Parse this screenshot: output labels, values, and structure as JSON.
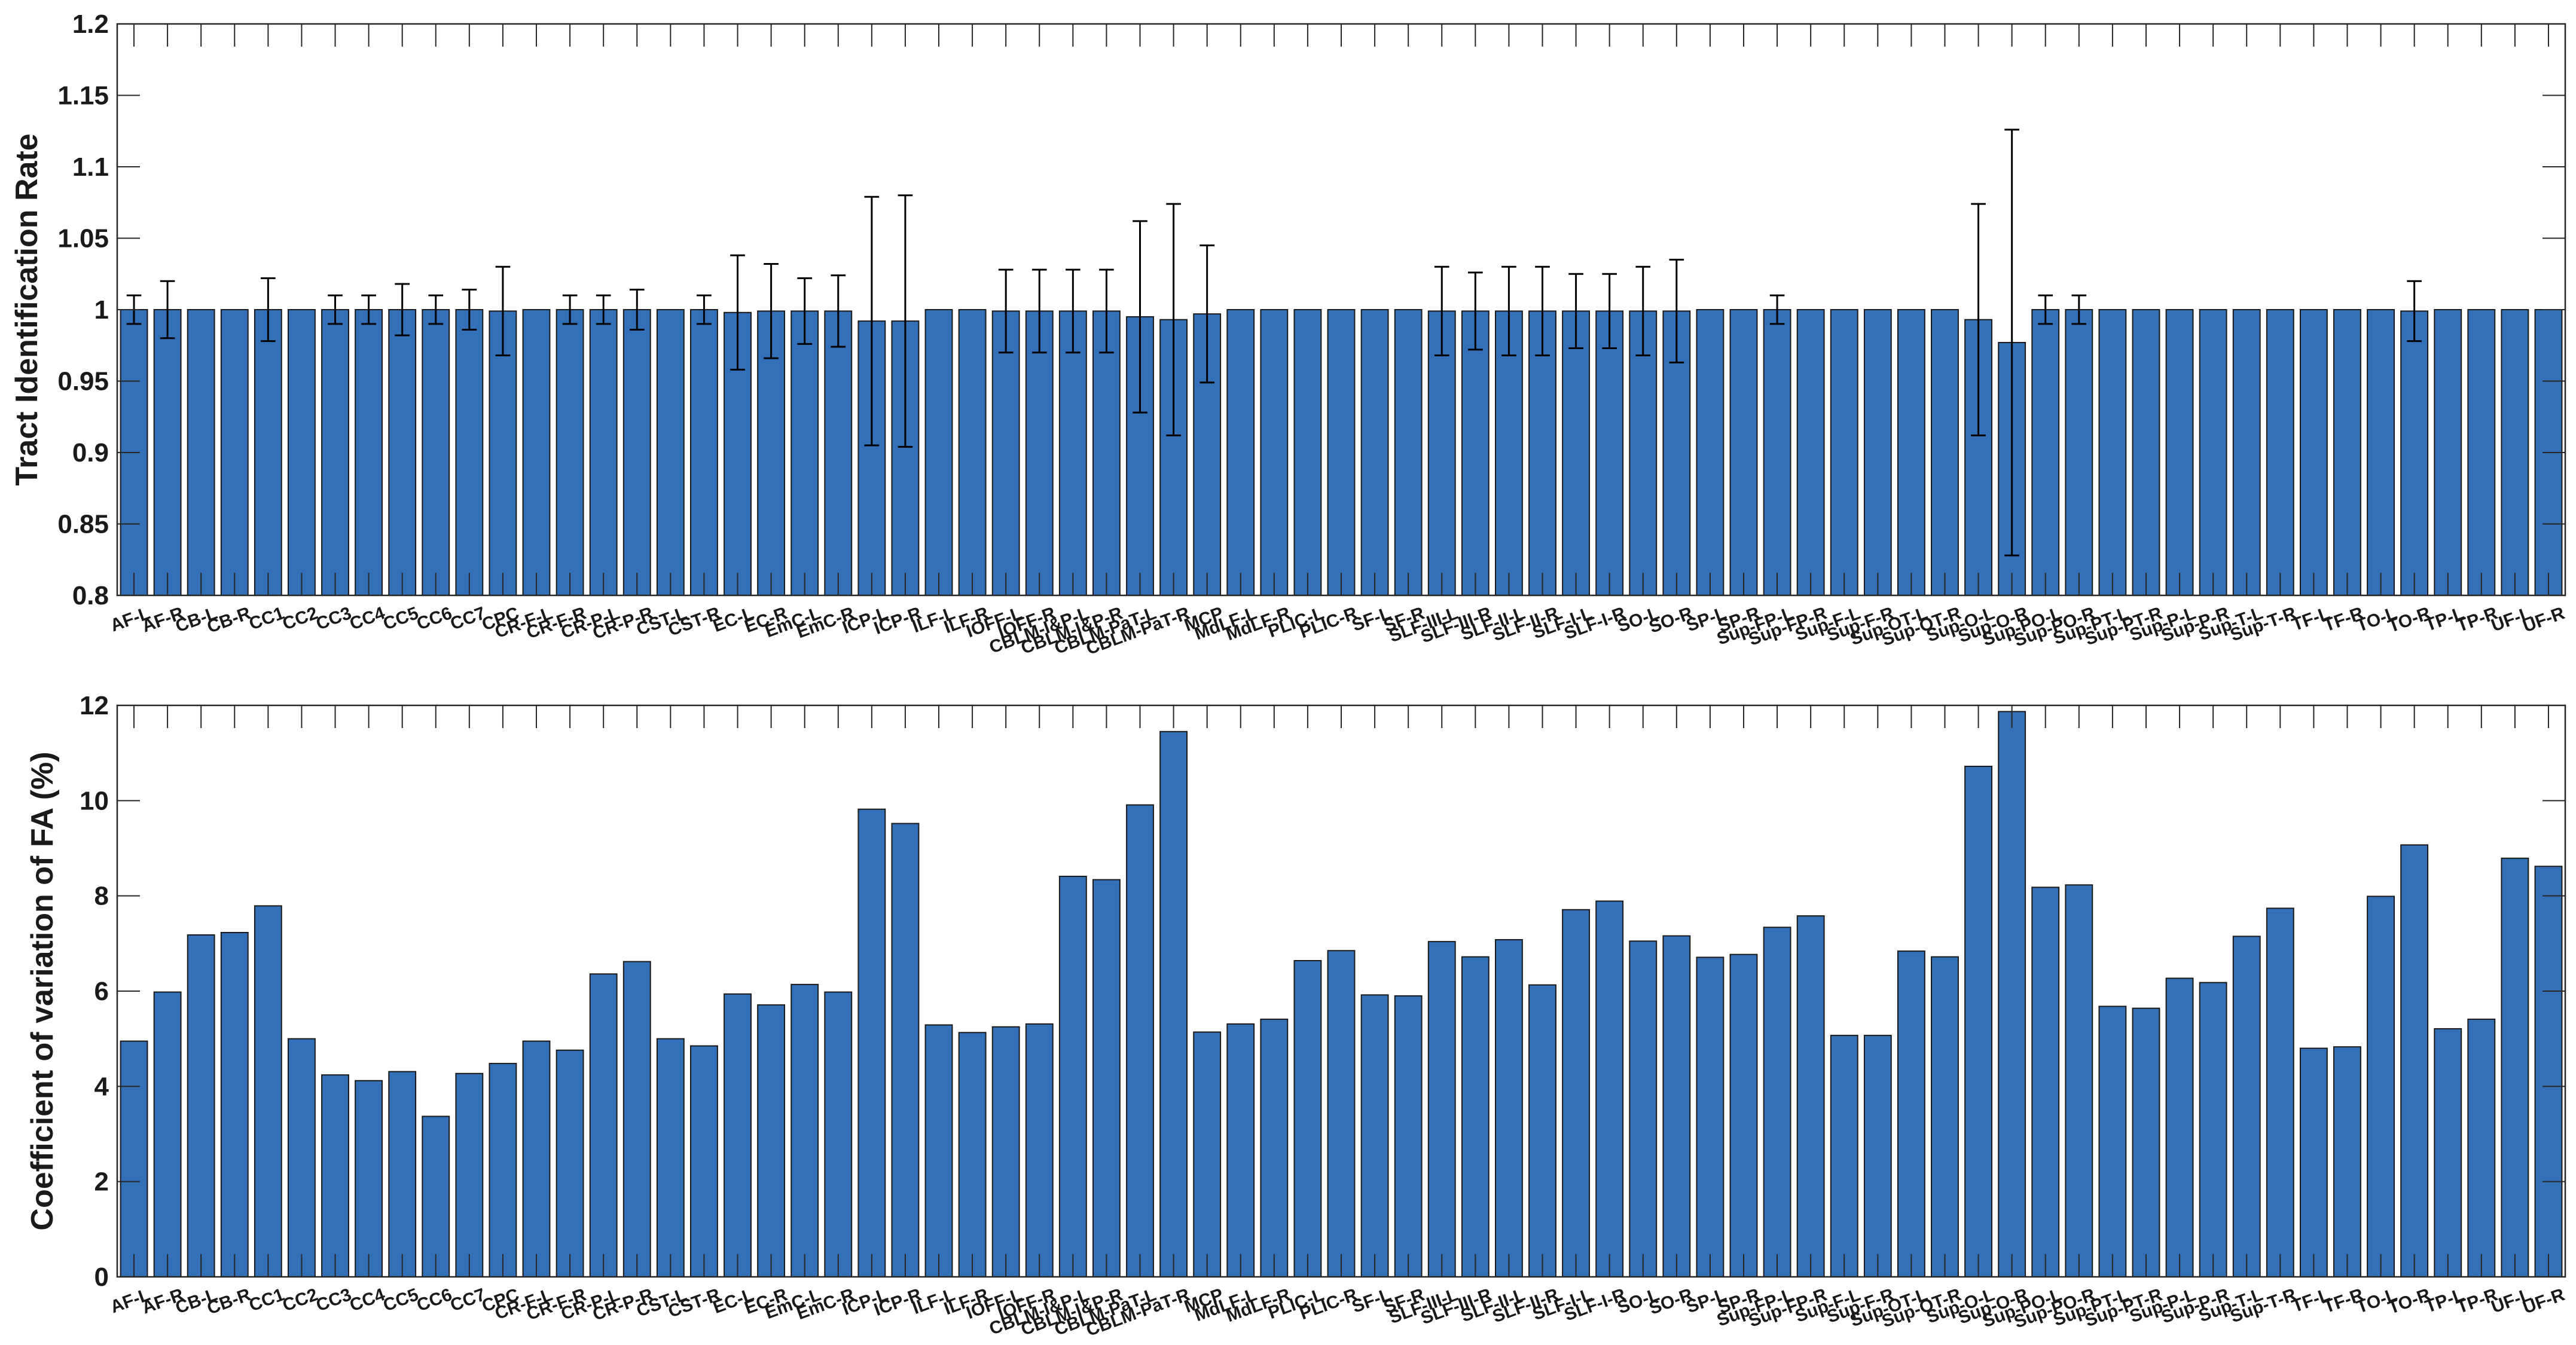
{
  "chart_data": [
    {
      "type": "bar",
      "title": "",
      "xlabel": "",
      "ylabel": "Tract Identification Rate",
      "ylim": [
        0.8,
        1.2
      ],
      "yticks": [
        0.8,
        0.85,
        0.9,
        0.95,
        1,
        1.05,
        1.1,
        1.15,
        1.2
      ],
      "ytick_labels": [
        "0.8",
        "0.85",
        "0.9",
        "0.95",
        "1",
        "1.05",
        "1.1",
        "1.15",
        "1.2"
      ],
      "bar_color": "#3370b8",
      "grid": false,
      "categories": [
        "AF-L",
        "AF-R",
        "CB-L",
        "CB-R",
        "CC1",
        "CC2",
        "CC3",
        "CC4",
        "CC5",
        "CC6",
        "CC7",
        "CPC",
        "CR-F-L",
        "CR-F-R",
        "CR-P-L",
        "CR-P-R",
        "CST-L",
        "CST-R",
        "EC-L",
        "EC-R",
        "EmC-L",
        "EmC-R",
        "ICP-L",
        "ICP-R",
        "ILF-L",
        "ILF-R",
        "IOFF-L",
        "IOFF-R",
        "CBLM-I&P-L",
        "CBLM-I&P-R",
        "CBLM-PaT-L",
        "CBLM-PaT-R",
        "MCP",
        "MdLF-L",
        "MdLF-R",
        "PLIC-L",
        "PLIC-R",
        "SF-L",
        "SF-R",
        "SLF-III-L",
        "SLF-III-R",
        "SLF-II-L",
        "SLF-II-R",
        "SLF-I-L",
        "SLF-I-R",
        "SO-L",
        "SO-R",
        "SP-L",
        "SP-R",
        "Sup-FP-L",
        "Sup-FP-R",
        "Sup-F-L",
        "Sup-F-R",
        "Sup-OT-L",
        "Sup-OT-R",
        "Sup-O-L",
        "Sup-O-R",
        "Sup-PO-L",
        "Sup-PO-R",
        "Sup-PT-L",
        "Sup-PT-R",
        "Sup-P-L",
        "Sup-P-R",
        "Sup-T-L",
        "Sup-T-R",
        "TF-L",
        "TF-R",
        "TO-L",
        "TO-R",
        "TP-L",
        "TP-R",
        "UF-L",
        "UF-R"
      ],
      "values": [
        1,
        1,
        1,
        1,
        1,
        1,
        1,
        1,
        1,
        1,
        1,
        0.999,
        1,
        1,
        1,
        1,
        1,
        1,
        0.998,
        0.999,
        0.999,
        0.999,
        0.992,
        0.992,
        1,
        1,
        0.999,
        0.999,
        0.999,
        0.999,
        0.995,
        0.993,
        0.997,
        1,
        1,
        1,
        1,
        1,
        1,
        0.999,
        0.999,
        0.999,
        0.999,
        0.999,
        0.999,
        0.999,
        0.999,
        1,
        1,
        1,
        1,
        1,
        1,
        1,
        1,
        0.993,
        0.977,
        1,
        1,
        1,
        1,
        1,
        1,
        1,
        1,
        1,
        1,
        1,
        0.999,
        1,
        1,
        1,
        1
      ],
      "errors": [
        0.01,
        0.02,
        0,
        0,
        0.022,
        0,
        0.01,
        0.01,
        0.018,
        0.01,
        0.014,
        0.031,
        0,
        0.01,
        0.01,
        0.014,
        0,
        0.01,
        0.04,
        0.033,
        0.023,
        0.025,
        0.087,
        0.088,
        0,
        0,
        0.029,
        0.029,
        0.029,
        0.029,
        0.067,
        0.081,
        0.048,
        0,
        0,
        0,
        0,
        0,
        0,
        0.031,
        0.027,
        0.031,
        0.031,
        0.026,
        0.026,
        0.031,
        0.036,
        0,
        0,
        0.01,
        0,
        0,
        0,
        0,
        0,
        0.081,
        0.149,
        0.01,
        0.01,
        0,
        0,
        0,
        0,
        0,
        0,
        0,
        0,
        0,
        0.021,
        0,
        0,
        0,
        0
      ]
    },
    {
      "type": "bar",
      "title": "",
      "xlabel": "",
      "ylabel": "Coefficient of variation of FA (%)",
      "ylim": [
        0,
        12
      ],
      "yticks": [
        0,
        2,
        4,
        6,
        8,
        10,
        12
      ],
      "ytick_labels": [
        "0",
        "2",
        "4",
        "6",
        "8",
        "10",
        "12"
      ],
      "bar_color": "#3370b8",
      "grid": false,
      "categories": [
        "AF-L",
        "AF-R",
        "CB-L",
        "CB-R",
        "CC1",
        "CC2",
        "CC3",
        "CC4",
        "CC5",
        "CC6",
        "CC7",
        "CPC",
        "CR-F-L",
        "CR-F-R",
        "CR-P-L",
        "CR-P-R",
        "CST-L",
        "CST-R",
        "EC-L",
        "EC-R",
        "EmC-L",
        "EmC-R",
        "ICP-L",
        "ICP-R",
        "ILF-L",
        "ILF-R",
        "IOFF-L",
        "IOFF-R",
        "CBLM-I&P-L",
        "CBLM-I&P-R",
        "CBLM-PaT-L",
        "CBLM-PaT-R",
        "MCP",
        "MdLF-L",
        "MdLF-R",
        "PLIC-L",
        "PLIC-R",
        "SF-L",
        "SF-R",
        "SLF-III-L",
        "SLF-III-R",
        "SLF-II-L",
        "SLF-II-R",
        "SLF-I-L",
        "SLF-I-R",
        "SO-L",
        "SO-R",
        "SP-L",
        "SP-R",
        "Sup-FP-L",
        "Sup-FP-R",
        "Sup-F-L",
        "Sup-F-R",
        "Sup-OT-L",
        "Sup-OT-R",
        "Sup-O-L",
        "Sup-O-R",
        "Sup-PO-L",
        "Sup-PO-R",
        "Sup-PT-L",
        "Sup-PT-R",
        "Sup-P-L",
        "Sup-P-R",
        "Sup-T-L",
        "Sup-T-R",
        "TF-L",
        "TF-R",
        "TO-L",
        "TO-R",
        "TP-L",
        "TP-R",
        "UF-L",
        "UF-R"
      ],
      "values": [
        4.95,
        5.98,
        7.18,
        7.23,
        7.79,
        5.0,
        4.24,
        4.12,
        4.31,
        3.37,
        4.27,
        4.48,
        4.95,
        4.76,
        6.36,
        6.62,
        5.0,
        4.85,
        5.94,
        5.71,
        6.14,
        5.98,
        9.82,
        9.52,
        5.29,
        5.13,
        5.25,
        5.31,
        8.41,
        8.34,
        9.91,
        11.45,
        5.14,
        5.31,
        5.41,
        6.64,
        6.85,
        5.92,
        5.9,
        7.04,
        6.72,
        7.08,
        6.13,
        7.71,
        7.89,
        7.05,
        7.16,
        6.71,
        6.77,
        7.34,
        7.58,
        5.07,
        5.07,
        6.84,
        6.72,
        10.72,
        11.87,
        8.18,
        8.23,
        5.68,
        5.64,
        6.27,
        6.18,
        7.15,
        7.74,
        4.8,
        4.83,
        7.99,
        9.07,
        5.21,
        5.41,
        8.79,
        8.62
      ]
    }
  ]
}
